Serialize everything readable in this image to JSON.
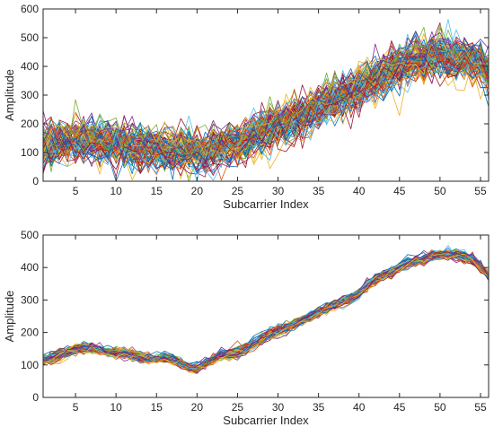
{
  "chart_data": [
    {
      "type": "line",
      "title": "",
      "xlabel": "Subcarrier Index",
      "ylabel": "Amplitude",
      "xlim": [
        1,
        56
      ],
      "ylim": [
        0,
        600
      ],
      "xticks": [
        5,
        10,
        15,
        20,
        25,
        30,
        35,
        40,
        45,
        50,
        55
      ],
      "yticks": [
        0,
        100,
        200,
        300,
        400,
        500,
        600
      ],
      "grid": false,
      "legend": "none",
      "num_series": 100,
      "x": [
        1,
        2,
        3,
        4,
        5,
        6,
        7,
        8,
        9,
        10,
        11,
        12,
        13,
        14,
        15,
        16,
        17,
        18,
        19,
        20,
        21,
        22,
        23,
        24,
        25,
        26,
        27,
        28,
        29,
        30,
        31,
        32,
        33,
        34,
        35,
        36,
        37,
        38,
        39,
        40,
        41,
        42,
        43,
        44,
        45,
        46,
        47,
        48,
        49,
        50,
        51,
        52,
        53,
        54,
        55,
        56
      ],
      "mean_profile": [
        120,
        128,
        135,
        140,
        142,
        144,
        143,
        142,
        140,
        136,
        130,
        125,
        120,
        115,
        112,
        110,
        108,
        106,
        104,
        104,
        106,
        110,
        117,
        126,
        136,
        148,
        160,
        172,
        184,
        196,
        208,
        220,
        232,
        245,
        258,
        272,
        286,
        300,
        314,
        330,
        345,
        360,
        374,
        388,
        400,
        410,
        418,
        425,
        430,
        433,
        434,
        432,
        428,
        420,
        405,
        380
      ],
      "noise_amplitude": 45,
      "colors": [
        "#0072BD",
        "#D95319",
        "#EDB120",
        "#7E2F8E",
        "#77AC30",
        "#4DBEEE",
        "#A2142F"
      ]
    },
    {
      "type": "line",
      "title": "",
      "xlabel": "Subcarrier Index",
      "ylabel": "Amplitude",
      "xlim": [
        1,
        56
      ],
      "ylim": [
        0,
        500
      ],
      "xticks": [
        5,
        10,
        15,
        20,
        25,
        30,
        35,
        40,
        45,
        50,
        55
      ],
      "yticks": [
        0,
        100,
        200,
        300,
        400,
        500
      ],
      "grid": false,
      "legend": "none",
      "num_series": 60,
      "x": [
        1,
        2,
        3,
        4,
        5,
        6,
        7,
        8,
        9,
        10,
        11,
        12,
        13,
        14,
        15,
        16,
        17,
        18,
        19,
        20,
        21,
        22,
        23,
        24,
        25,
        26,
        27,
        28,
        29,
        30,
        31,
        32,
        33,
        34,
        35,
        36,
        37,
        38,
        39,
        40,
        41,
        42,
        43,
        44,
        45,
        46,
        47,
        48,
        49,
        50,
        51,
        52,
        53,
        54,
        55,
        56
      ],
      "mean_profile": [
        115,
        122,
        130,
        140,
        150,
        155,
        150,
        145,
        140,
        138,
        138,
        132,
        125,
        120,
        118,
        122,
        115,
        108,
        95,
        90,
        105,
        118,
        130,
        132,
        140,
        150,
        165,
        180,
        195,
        208,
        215,
        225,
        238,
        250,
        262,
        275,
        285,
        295,
        305,
        320,
        345,
        365,
        378,
        385,
        400,
        415,
        420,
        428,
        435,
        440,
        442,
        440,
        435,
        425,
        405,
        375
      ],
      "noise_amplitude": 10,
      "colors": [
        "#0072BD",
        "#D95319",
        "#EDB120",
        "#7E2F8E",
        "#77AC30",
        "#4DBEEE",
        "#A2142F"
      ]
    }
  ]
}
